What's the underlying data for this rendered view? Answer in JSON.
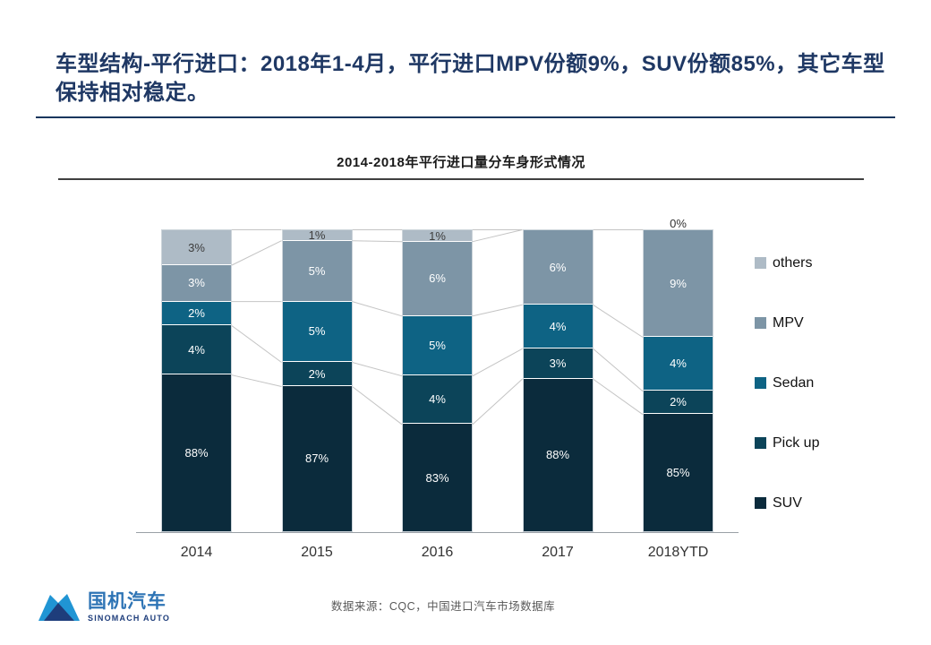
{
  "slide": {
    "title": "车型结构-平行进口：2018年1-4月，平行进口MPV份额9%，SUV份额85%，其它车型保持相对稳定。"
  },
  "chart_data": {
    "type": "bar",
    "subtype": "stacked-100-percent",
    "title": "2014-2018年平行进口量分车身形式情况",
    "categories": [
      "2014",
      "2015",
      "2016",
      "2017",
      "2018YTD"
    ],
    "legend_position": "right",
    "legend_order_top_down": [
      "others",
      "MPV",
      "Sedan",
      "Pick up",
      "SUV"
    ],
    "ylim": [
      0,
      100
    ],
    "grid": false,
    "note": "Data labels are true percentages; display_heights_pct are the measured on-screen segment heights (chart visually exaggerates small segments).",
    "series": [
      {
        "name": "others",
        "color": "#aebbc6",
        "label_style": "dark",
        "values": [
          3,
          1,
          1,
          0,
          0
        ],
        "labels": [
          "3%",
          "1%",
          "1%",
          "",
          "0%"
        ],
        "display_heights_pct": [
          11.69,
          3.61,
          3.91,
          0,
          0
        ]
      },
      {
        "name": "MPV",
        "color": "#7d95a6",
        "label_style": "light",
        "values": [
          3,
          5,
          6,
          6,
          9
        ],
        "labels": [
          "3%",
          "5%",
          "6%",
          "6%",
          "9%"
        ],
        "display_heights_pct": [
          12.01,
          20.09,
          24.58,
          24.79,
          35.5
        ]
      },
      {
        "name": "Sedan",
        "color": "#0e6384",
        "label_style": "light",
        "values": [
          2,
          5,
          5,
          4,
          4
        ],
        "labels": [
          "2%",
          "5%",
          "5%",
          "4%",
          "4%"
        ],
        "display_heights_pct": [
          7.99,
          20.09,
          19.79,
          14.5,
          17.81
        ]
      },
      {
        "name": "Pick up",
        "color": "#0c4459",
        "label_style": "light",
        "values": [
          4,
          2,
          4,
          3,
          2
        ],
        "labels": [
          "4%",
          "2%",
          "4%",
          "3%",
          "2%"
        ],
        "display_heights_pct": [
          16.3,
          7.99,
          16.01,
          10.0,
          7.69
        ]
      },
      {
        "name": "SUV",
        "color": "#0b2b3c",
        "label_style": "light",
        "values": [
          88,
          87,
          83,
          88,
          85
        ],
        "labels": [
          "88%",
          "87%",
          "83%",
          "88%",
          "85%"
        ],
        "display_heights_pct": [
          52.01,
          48.22,
          35.71,
          50.71,
          39.0
        ]
      }
    ],
    "connector_line_color": "#c4c4c4"
  },
  "footer": {
    "source": "数据来源：CQC，中国进口汽车市场数据库",
    "logo_cn": "国机汽车",
    "logo_en": "SINOMACH AUTO"
  }
}
